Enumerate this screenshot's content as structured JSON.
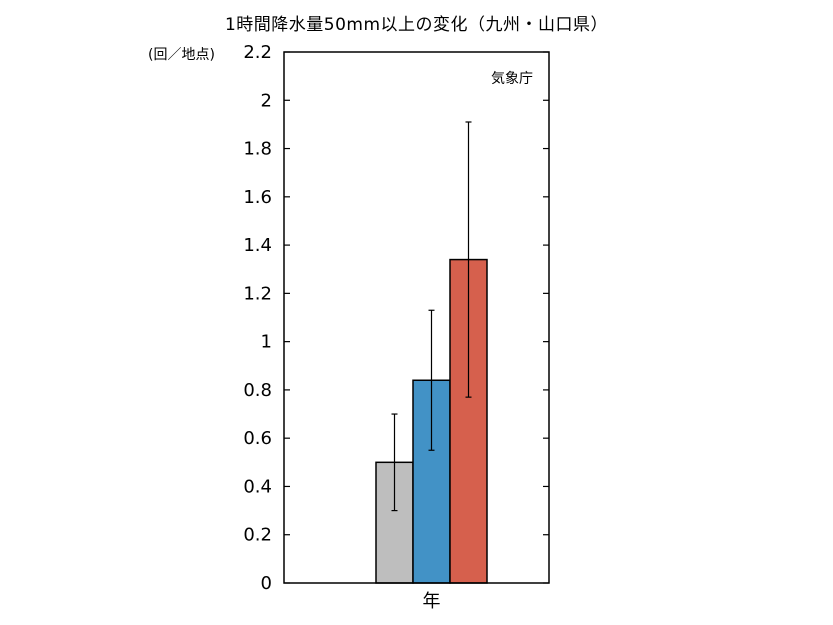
{
  "chart_data": {
    "type": "bar",
    "title": "1時間降水量50mm以上の変化（九州・山口県）",
    "ylabel": "(回／地点)",
    "xlabel": "",
    "source": "気象庁",
    "categories": [
      "年"
    ],
    "ylim": [
      0,
      2.2
    ],
    "yticks": [
      0,
      0.2,
      0.4,
      0.6,
      0.8,
      1,
      1.2,
      1.4,
      1.6,
      1.8,
      2,
      2.2
    ],
    "grid": false,
    "series": [
      {
        "value": 0.5,
        "error_low": 0.3,
        "error_high": 0.7,
        "color": "#bebebe"
      },
      {
        "value": 0.84,
        "error_low": 0.55,
        "error_high": 1.13,
        "color": "#4292c6"
      },
      {
        "value": 1.34,
        "error_low": 0.77,
        "error_high": 1.91,
        "color": "#d6604d"
      }
    ]
  }
}
